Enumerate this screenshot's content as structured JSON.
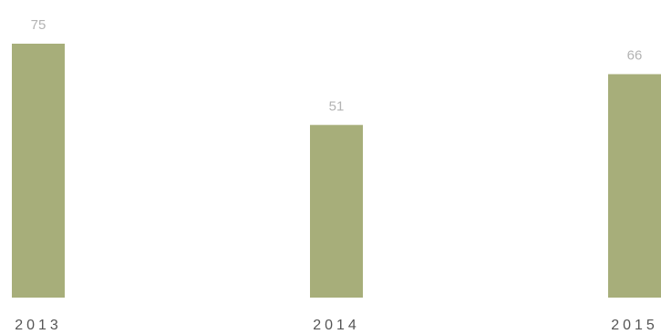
{
  "chart_data": {
    "type": "bar",
    "categories": [
      "2013",
      "2014",
      "2015"
    ],
    "values": [
      75,
      51,
      66
    ],
    "title": "",
    "xlabel": "",
    "ylabel": "",
    "ylim": [
      0,
      75
    ],
    "grid": false,
    "legend": "none",
    "bar_color": "#a7ae7a",
    "value_label_color": "#b3b3b3",
    "category_label_color": "#555555"
  }
}
